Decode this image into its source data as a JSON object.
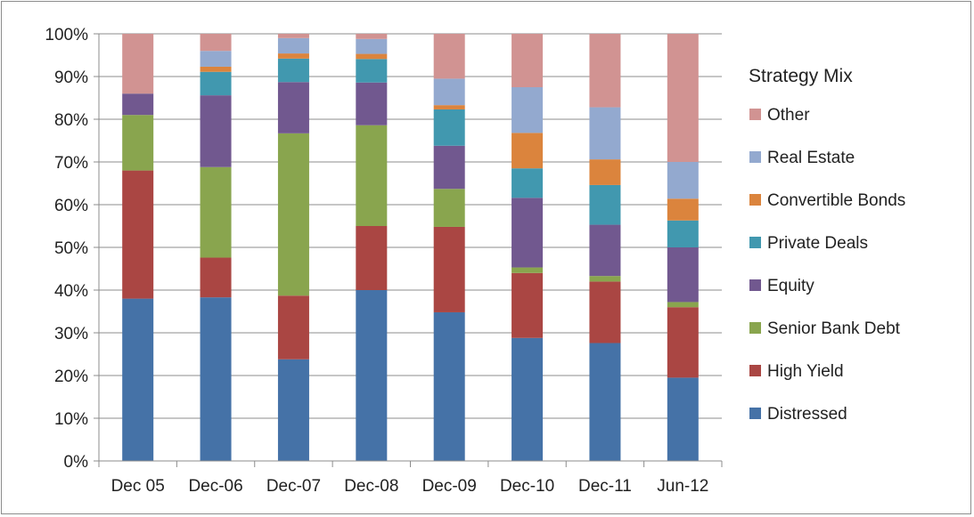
{
  "chart_data": {
    "type": "bar",
    "stacked": true,
    "categories": [
      "Dec 05",
      "Dec-06",
      "Dec-07",
      "Dec-08",
      "Dec-09",
      "Dec-10",
      "Dec-11",
      "Jun-12"
    ],
    "ylim": [
      0,
      100
    ],
    "yticks": [
      "0%",
      "10%",
      "20%",
      "30%",
      "40%",
      "50%",
      "60%",
      "70%",
      "80%",
      "90%",
      "100%"
    ],
    "grid": true,
    "legend": {
      "title": "Strategy Mix",
      "position": "right"
    },
    "series": [
      {
        "name": "Distressed",
        "color": "#4572a7",
        "values": [
          38,
          38.3,
          23.8,
          40,
          34.8,
          28.8,
          27.6,
          19.5
        ]
      },
      {
        "name": "High Yield",
        "color": "#aa4643",
        "values": [
          30,
          9.3,
          14.9,
          15,
          20,
          15.2,
          14.4,
          16.5
        ]
      },
      {
        "name": "Senior Bank Debt",
        "color": "#89a54e",
        "values": [
          13,
          21.2,
          38,
          23.6,
          8.9,
          1.3,
          1.3,
          1.2
        ]
      },
      {
        "name": "Equity",
        "color": "#71588f",
        "values": [
          5,
          16.8,
          12,
          10,
          10.1,
          16.3,
          12,
          12.8
        ]
      },
      {
        "name": "Private Deals",
        "color": "#4198af",
        "values": [
          0,
          5.5,
          5.5,
          5.5,
          8.5,
          6.9,
          9.3,
          6.3
        ]
      },
      {
        "name": "Convertible Bonds",
        "color": "#db843d",
        "values": [
          0,
          1.2,
          1.2,
          1.2,
          1,
          8.3,
          6,
          5.1
        ]
      },
      {
        "name": "Real Estate",
        "color": "#93a9cf",
        "values": [
          0,
          3.7,
          3.6,
          3.5,
          6.2,
          10.7,
          12.2,
          8.6
        ]
      },
      {
        "name": "Other",
        "color": "#d19392",
        "values": [
          14,
          4,
          1,
          1.2,
          10.5,
          12.5,
          17.2,
          30
        ]
      }
    ]
  }
}
